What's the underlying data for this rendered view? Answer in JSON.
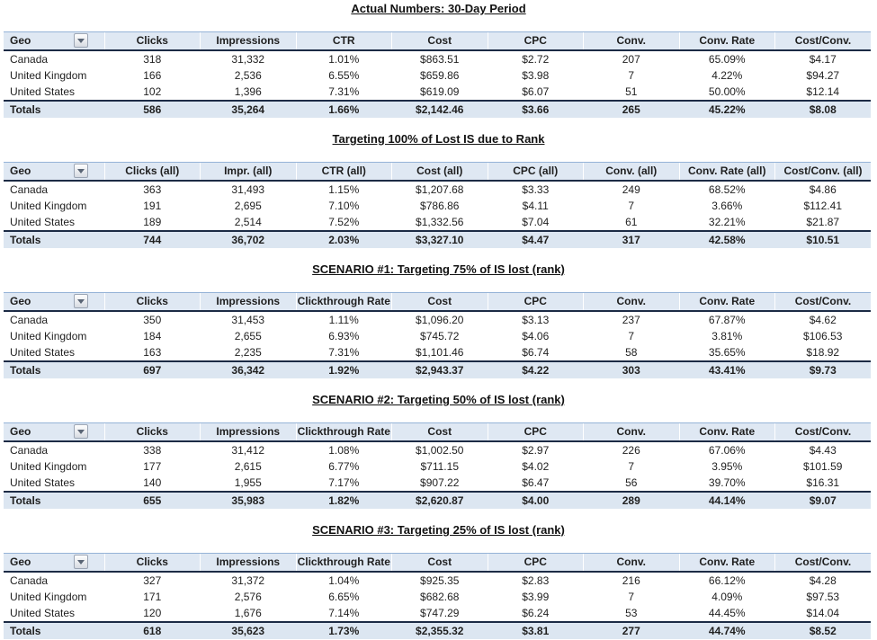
{
  "theme": {
    "header_fill": "#dfe8f3",
    "totals_fill": "#dce6f1",
    "dark_border": "#1c2b45",
    "light_border": "#95b3d7",
    "text_color": "#1f1f1f"
  },
  "geo_filter": {
    "icon": "chevron-down-icon"
  },
  "tables": [
    {
      "title": "Actual Numbers: 30-Day Period",
      "columns": [
        "Geo",
        "Clicks",
        "Impressions",
        "CTR",
        "Cost",
        "CPC",
        "Conv.",
        "Conv. Rate",
        "Cost/Conv."
      ],
      "rows": [
        [
          "Canada",
          "318",
          "31,332",
          "1.01%",
          "$863.51",
          "$2.72",
          "207",
          "65.09%",
          "$4.17"
        ],
        [
          "United Kingdom",
          "166",
          "2,536",
          "6.55%",
          "$659.86",
          "$3.98",
          "7",
          "4.22%",
          "$94.27"
        ],
        [
          "United States",
          "102",
          "1,396",
          "7.31%",
          "$619.09",
          "$6.07",
          "51",
          "50.00%",
          "$12.14"
        ]
      ],
      "totals": [
        "Totals",
        "586",
        "35,264",
        "1.66%",
        "$2,142.46",
        "$3.66",
        "265",
        "45.22%",
        "$8.08"
      ]
    },
    {
      "title": "Targeting 100% of Lost IS due to Rank",
      "columns": [
        "Geo",
        "Clicks (all)",
        "Impr. (all)",
        "CTR (all)",
        "Cost (all)",
        "CPC (all)",
        "Conv. (all)",
        "Conv. Rate (all)",
        "Cost/Conv. (all)"
      ],
      "rows": [
        [
          "Canada",
          "363",
          "31,493",
          "1.15%",
          "$1,207.68",
          "$3.33",
          "249",
          "68.52%",
          "$4.86"
        ],
        [
          "United Kingdom",
          "191",
          "2,695",
          "7.10%",
          "$786.86",
          "$4.11",
          "7",
          "3.66%",
          "$112.41"
        ],
        [
          "United States",
          "189",
          "2,514",
          "7.52%",
          "$1,332.56",
          "$7.04",
          "61",
          "32.21%",
          "$21.87"
        ]
      ],
      "totals": [
        "Totals",
        "744",
        "36,702",
        "2.03%",
        "$3,327.10",
        "$4.47",
        "317",
        "42.58%",
        "$10.51"
      ]
    },
    {
      "title": "SCENARIO #1: Targeting 75% of IS lost (rank)",
      "columns": [
        "Geo",
        "Clicks",
        "Impressions",
        "Clickthrough Rate",
        "Cost",
        "CPC",
        "Conv.",
        "Conv. Rate",
        "Cost/Conv."
      ],
      "rows": [
        [
          "Canada",
          "350",
          "31,453",
          "1.11%",
          "$1,096.20",
          "$3.13",
          "237",
          "67.87%",
          "$4.62"
        ],
        [
          "United Kingdom",
          "184",
          "2,655",
          "6.93%",
          "$745.72",
          "$4.06",
          "7",
          "3.81%",
          "$106.53"
        ],
        [
          "United States",
          "163",
          "2,235",
          "7.31%",
          "$1,101.46",
          "$6.74",
          "58",
          "35.65%",
          "$18.92"
        ]
      ],
      "totals": [
        "Totals",
        "697",
        "36,342",
        "1.92%",
        "$2,943.37",
        "$4.22",
        "303",
        "43.41%",
        "$9.73"
      ]
    },
    {
      "title": "SCENARIO #2: Targeting 50% of IS lost (rank)",
      "columns": [
        "Geo",
        "Clicks",
        "Impressions",
        "Clickthrough Rate",
        "Cost",
        "CPC",
        "Conv.",
        "Conv. Rate",
        "Cost/Conv."
      ],
      "rows": [
        [
          "Canada",
          "338",
          "31,412",
          "1.08%",
          "$1,002.50",
          "$2.97",
          "226",
          "67.06%",
          "$4.43"
        ],
        [
          "United Kingdom",
          "177",
          "2,615",
          "6.77%",
          "$711.15",
          "$4.02",
          "7",
          "3.95%",
          "$101.59"
        ],
        [
          "United States",
          "140",
          "1,955",
          "7.17%",
          "$907.22",
          "$6.47",
          "56",
          "39.70%",
          "$16.31"
        ]
      ],
      "totals": [
        "Totals",
        "655",
        "35,983",
        "1.82%",
        "$2,620.87",
        "$4.00",
        "289",
        "44.14%",
        "$9.07"
      ]
    },
    {
      "title": "SCENARIO #3: Targeting 25% of IS lost (rank)",
      "columns": [
        "Geo",
        "Clicks",
        "Impressions",
        "Clickthrough Rate",
        "Cost",
        "CPC",
        "Conv.",
        "Conv. Rate",
        "Cost/Conv."
      ],
      "rows": [
        [
          "Canada",
          "327",
          "31,372",
          "1.04%",
          "$925.35",
          "$2.83",
          "216",
          "66.12%",
          "$4.28"
        ],
        [
          "United Kingdom",
          "171",
          "2,576",
          "6.65%",
          "$682.68",
          "$3.99",
          "7",
          "4.09%",
          "$97.53"
        ],
        [
          "United States",
          "120",
          "1,676",
          "7.14%",
          "$747.29",
          "$6.24",
          "53",
          "44.45%",
          "$14.04"
        ]
      ],
      "totals": [
        "Totals",
        "618",
        "35,623",
        "1.73%",
        "$2,355.32",
        "$3.81",
        "277",
        "44.74%",
        "$8.52"
      ]
    }
  ]
}
